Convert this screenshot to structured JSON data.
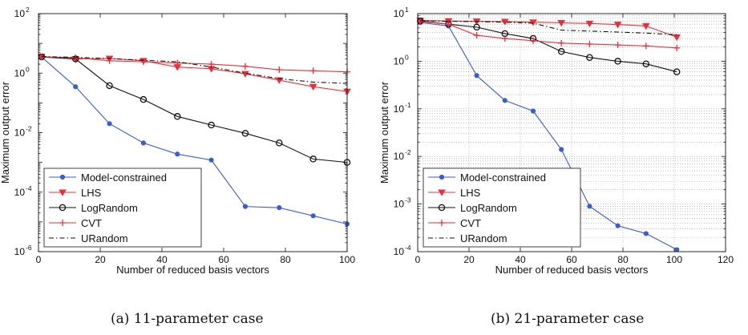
{
  "captions": [
    "(a) 11-parameter case",
    "(b) 21-parameter case"
  ],
  "colors": {
    "Model-constrained": "#3a5fcd",
    "LHS": "#e8303a",
    "LogRandom": "#111111",
    "CVT": "#e8303a",
    "URandom": "#111111"
  },
  "chart_data": [
    {
      "type": "line",
      "yscale": "log",
      "xlabel": "Number of reduced basis vectors",
      "ylabel": "Maximum output error",
      "xlim": [
        0,
        100
      ],
      "ylim": [
        1e-06,
        100
      ],
      "xticks": [
        0,
        20,
        40,
        60,
        80,
        100
      ],
      "yticks": [
        1e-06,
        0.0001,
        0.01,
        1,
        100
      ],
      "ytick_labels": [
        [
          "10",
          "-6"
        ],
        [
          "10",
          "-4"
        ],
        [
          "10",
          "-2"
        ],
        [
          "10",
          "0"
        ],
        [
          "10",
          "2"
        ]
      ],
      "grid": false,
      "legend": "bottom-left",
      "series": [
        {
          "name": "Model-constrained",
          "marker": "dot",
          "dash": "solid",
          "x": [
            1,
            12,
            23,
            34,
            45,
            56,
            67,
            78,
            89,
            100
          ],
          "y": [
            3.5,
            0.35,
            0.02,
            0.0045,
            0.0019,
            0.0012,
            3.3e-05,
            3e-05,
            1.6e-05,
            8.5e-06
          ]
        },
        {
          "name": "LHS",
          "marker": "triangle-down",
          "dash": "solid",
          "x": [
            1,
            12,
            23,
            34,
            45,
            56,
            67,
            78,
            89,
            100
          ],
          "y": [
            3.6,
            3.0,
            3.1,
            2.6,
            1.6,
            1.4,
            0.95,
            0.58,
            0.35,
            0.24
          ]
        },
        {
          "name": "LogRandom",
          "marker": "circle",
          "dash": "solid",
          "x": [
            1,
            12,
            23,
            34,
            45,
            56,
            67,
            78,
            89,
            100
          ],
          "y": [
            3.5,
            3.0,
            0.38,
            0.13,
            0.035,
            0.018,
            0.0095,
            0.0045,
            0.0013,
            0.001
          ]
        },
        {
          "name": "CVT",
          "marker": "plus",
          "dash": "solid",
          "x": [
            1,
            12,
            23,
            34,
            45,
            56,
            67,
            78,
            89,
            100
          ],
          "y": [
            3.5,
            3.3,
            2.6,
            2.4,
            2.2,
            2.0,
            1.7,
            1.3,
            1.2,
            1.1
          ]
        },
        {
          "name": "URandom",
          "marker": "none",
          "dash": "dashdot",
          "x": [
            1,
            12,
            23,
            34,
            45,
            56,
            67,
            78,
            89,
            100
          ],
          "y": [
            3.6,
            3.4,
            3.1,
            2.7,
            2.4,
            1.6,
            1.0,
            0.65,
            0.5,
            0.45
          ]
        }
      ]
    },
    {
      "type": "line",
      "yscale": "log",
      "xlabel": "Number of reduced basis vectors",
      "ylabel": "Maximum output error",
      "xlim": [
        0,
        120
      ],
      "ylim": [
        0.0001,
        10
      ],
      "xticks": [
        0,
        20,
        40,
        60,
        80,
        100,
        120
      ],
      "yticks": [
        0.0001,
        0.001,
        0.01,
        0.1,
        1,
        10
      ],
      "ytick_labels": [
        [
          "10",
          "-4"
        ],
        [
          "10",
          "-3"
        ],
        [
          "10",
          "-2"
        ],
        [
          "10",
          "-1"
        ],
        [
          "10",
          "0"
        ],
        [
          "10",
          "1"
        ]
      ],
      "grid": true,
      "legend": "bottom-left",
      "series": [
        {
          "name": "Model-constrained",
          "marker": "dot",
          "dash": "solid",
          "x": [
            1,
            12,
            23,
            34,
            45,
            56,
            67,
            78,
            89,
            101
          ],
          "y": [
            6.5,
            5.5,
            0.5,
            0.15,
            0.09,
            0.014,
            0.0009,
            0.00035,
            0.00024,
            0.00011
          ]
        },
        {
          "name": "LHS",
          "marker": "triangle-down",
          "dash": "solid",
          "x": [
            1,
            12,
            23,
            34,
            45,
            56,
            67,
            78,
            89,
            101
          ],
          "y": [
            7.2,
            7.0,
            6.9,
            6.8,
            6.6,
            6.4,
            6.2,
            5.9,
            5.5,
            3.2
          ]
        },
        {
          "name": "LogRandom",
          "marker": "circle",
          "dash": "solid",
          "x": [
            1,
            12,
            23,
            34,
            45,
            56,
            67,
            78,
            89,
            101
          ],
          "y": [
            7.0,
            6.0,
            5.2,
            3.8,
            3.0,
            1.6,
            1.2,
            1.0,
            0.88,
            0.6
          ]
        },
        {
          "name": "CVT",
          "marker": "plus",
          "dash": "solid",
          "x": [
            1,
            12,
            23,
            34,
            45,
            56,
            67,
            78,
            89,
            101
          ],
          "y": [
            6.8,
            6.0,
            3.5,
            3.0,
            2.7,
            2.4,
            2.3,
            2.2,
            2.1,
            1.9
          ]
        },
        {
          "name": "URandom",
          "marker": "none",
          "dash": "dashdot",
          "x": [
            1,
            12,
            23,
            34,
            45,
            56,
            67,
            78,
            89,
            101
          ],
          "y": [
            7.1,
            6.9,
            6.8,
            6.6,
            6.3,
            4.5,
            4.3,
            4.1,
            3.9,
            3.6
          ]
        }
      ]
    }
  ]
}
